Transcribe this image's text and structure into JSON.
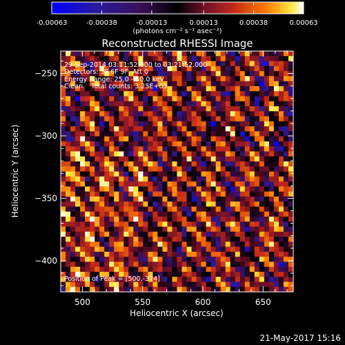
{
  "colorbar": {
    "tick_labels": [
      "-0.00063",
      "-0.00038",
      "-0.00013",
      "0.00013",
      "0.00038",
      "0.00063"
    ],
    "unit_label": "(photons cm⁻² s⁻¹ asec⁻²)",
    "range": [
      -0.00063,
      0.00063
    ]
  },
  "chart_data": {
    "type": "heatmap",
    "title": "Reconstructed RHESSI Image",
    "xlabel": "Heliocentric X (arcsec)",
    "ylabel": "Heliocentric Y (arcsec)",
    "xlim": [
      482,
      675
    ],
    "ylim": [
      -425,
      -232
    ],
    "x_ticks": [
      500,
      550,
      600,
      650
    ],
    "y_ticks": [
      -250,
      -300,
      -350,
      -400
    ],
    "annotations": [
      "29-Sep-2014 03:11:52.000 to 03:21:52.000",
      "Detectors: 3F 6F 9F, Att 0",
      "Energy Range: 25.0 - 50.0 keV",
      "Clean    Total counts: 3.25E+03"
    ],
    "peak_label": "Position of Peak = [500,-374]",
    "peak_position": [
      500,
      -374
    ],
    "colormap": [
      "#0000ff",
      "#2a1a9a",
      "#3a0f5a",
      "#000000",
      "#6a0f2a",
      "#c0281a",
      "#ff7a00",
      "#ffe840",
      "#ffffff"
    ],
    "grid": false
  },
  "footer": {
    "timestamp": "21-May-2017 15:16"
  }
}
